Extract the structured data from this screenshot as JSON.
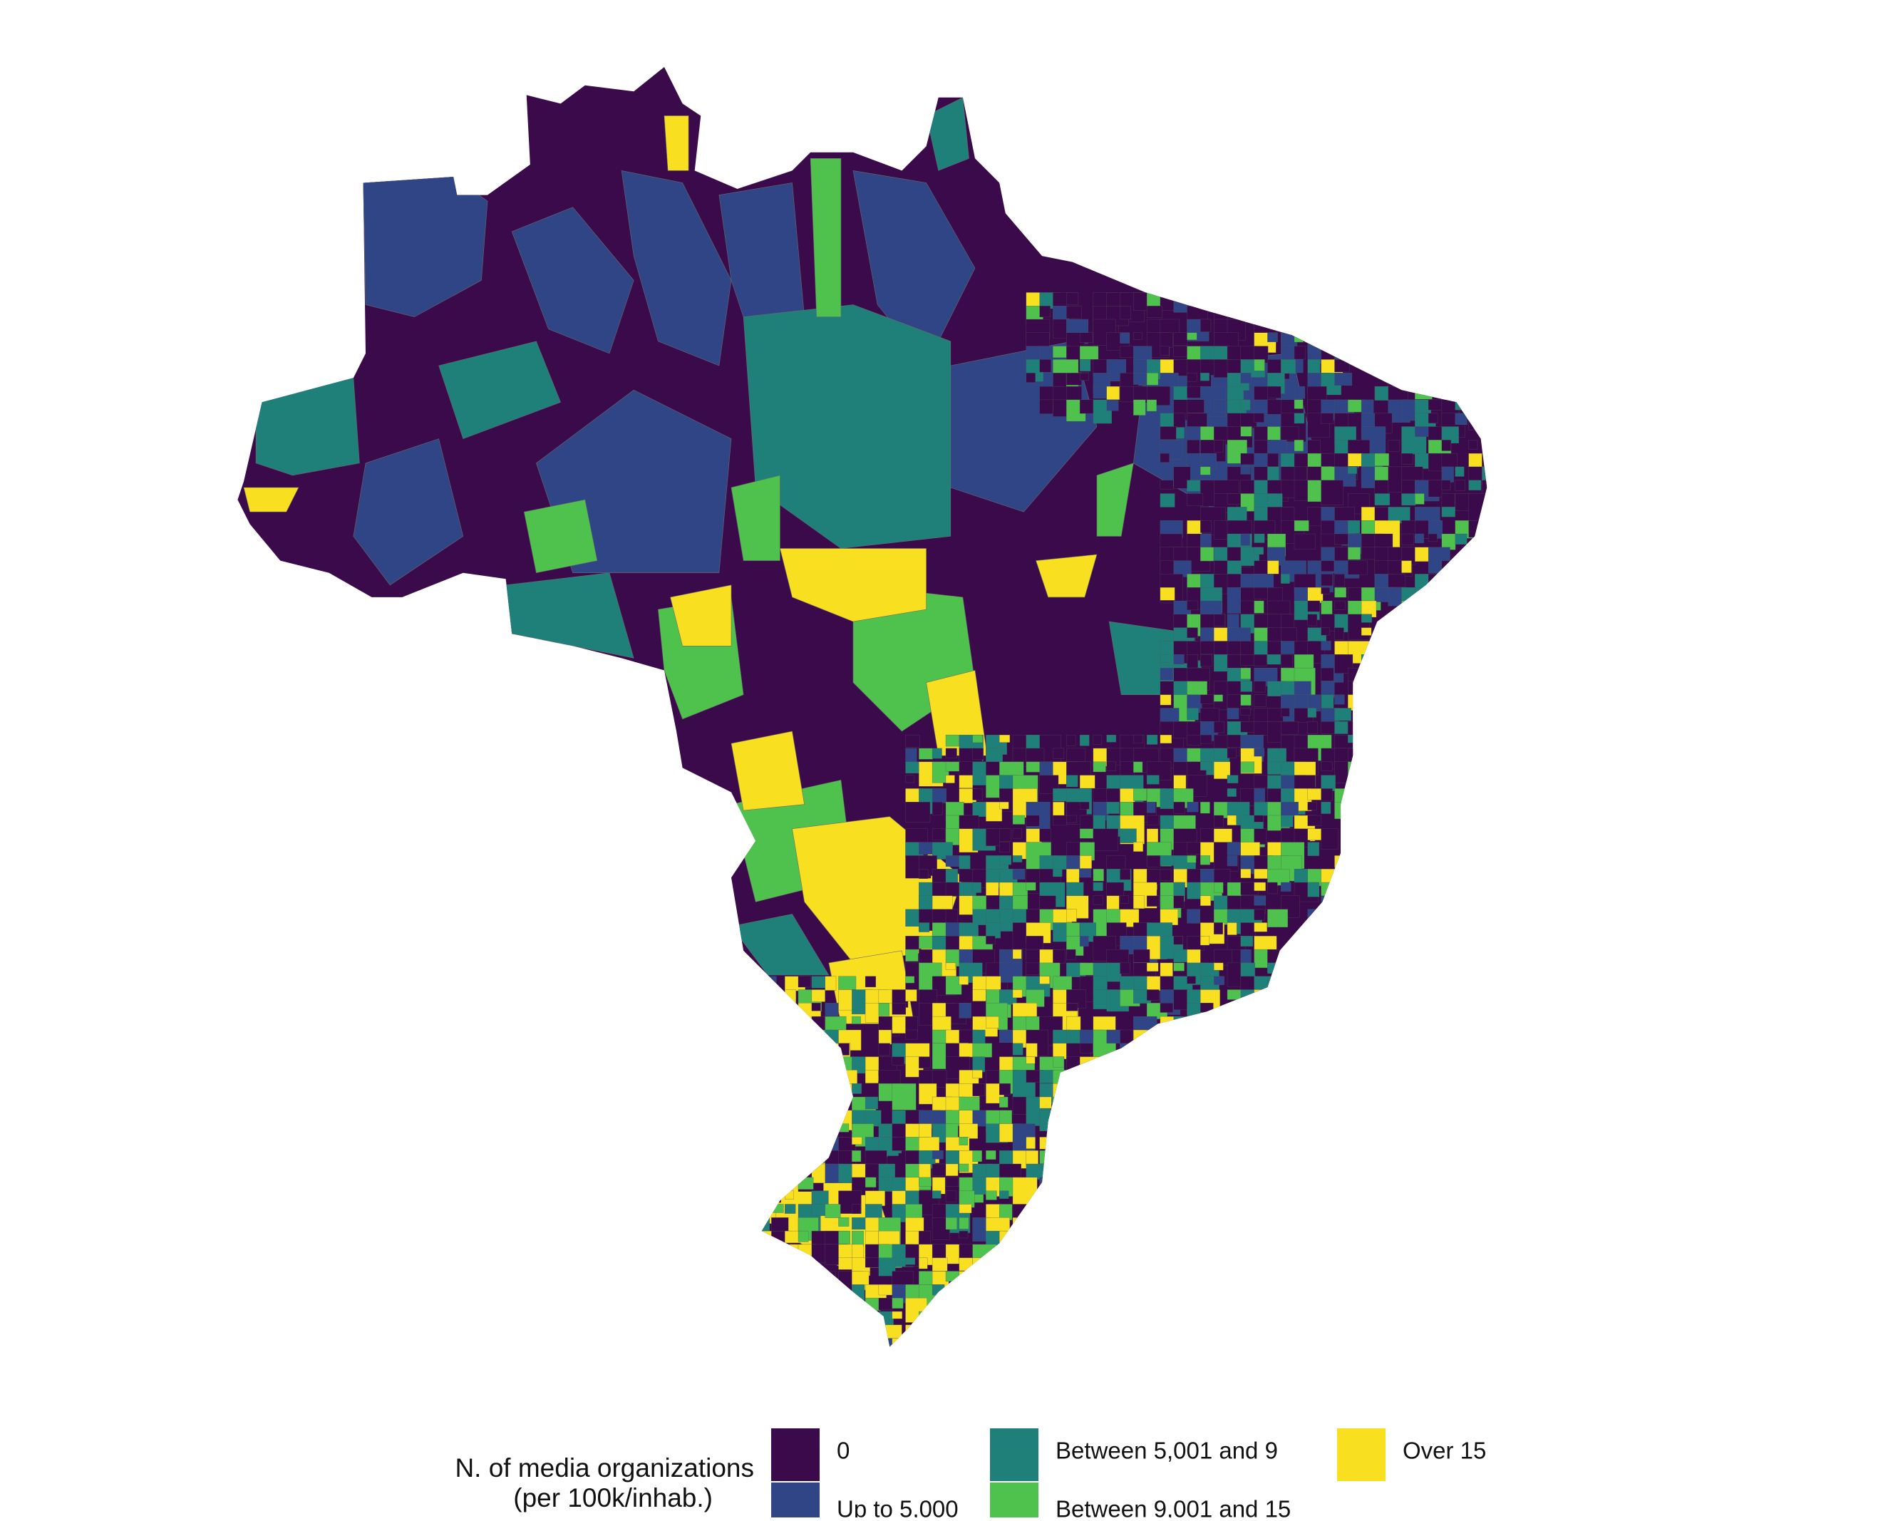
{
  "map": {
    "legend": {
      "title": [
        "N. of media organizations",
        "(per 100k/inhab.)"
      ],
      "items": [
        {
          "label": "0",
          "color": "#3a0a4b"
        },
        {
          "label": "Up to 5,000",
          "color": "#2f4585"
        },
        {
          "label": "Between 5,001 and 9",
          "color": "#1f8079"
        },
        {
          "label": "Between 9,001 and 15",
          "color": "#4fc24d"
        },
        {
          "label": "Over 15",
          "color": "#f8e021"
        }
      ]
    }
  }
}
